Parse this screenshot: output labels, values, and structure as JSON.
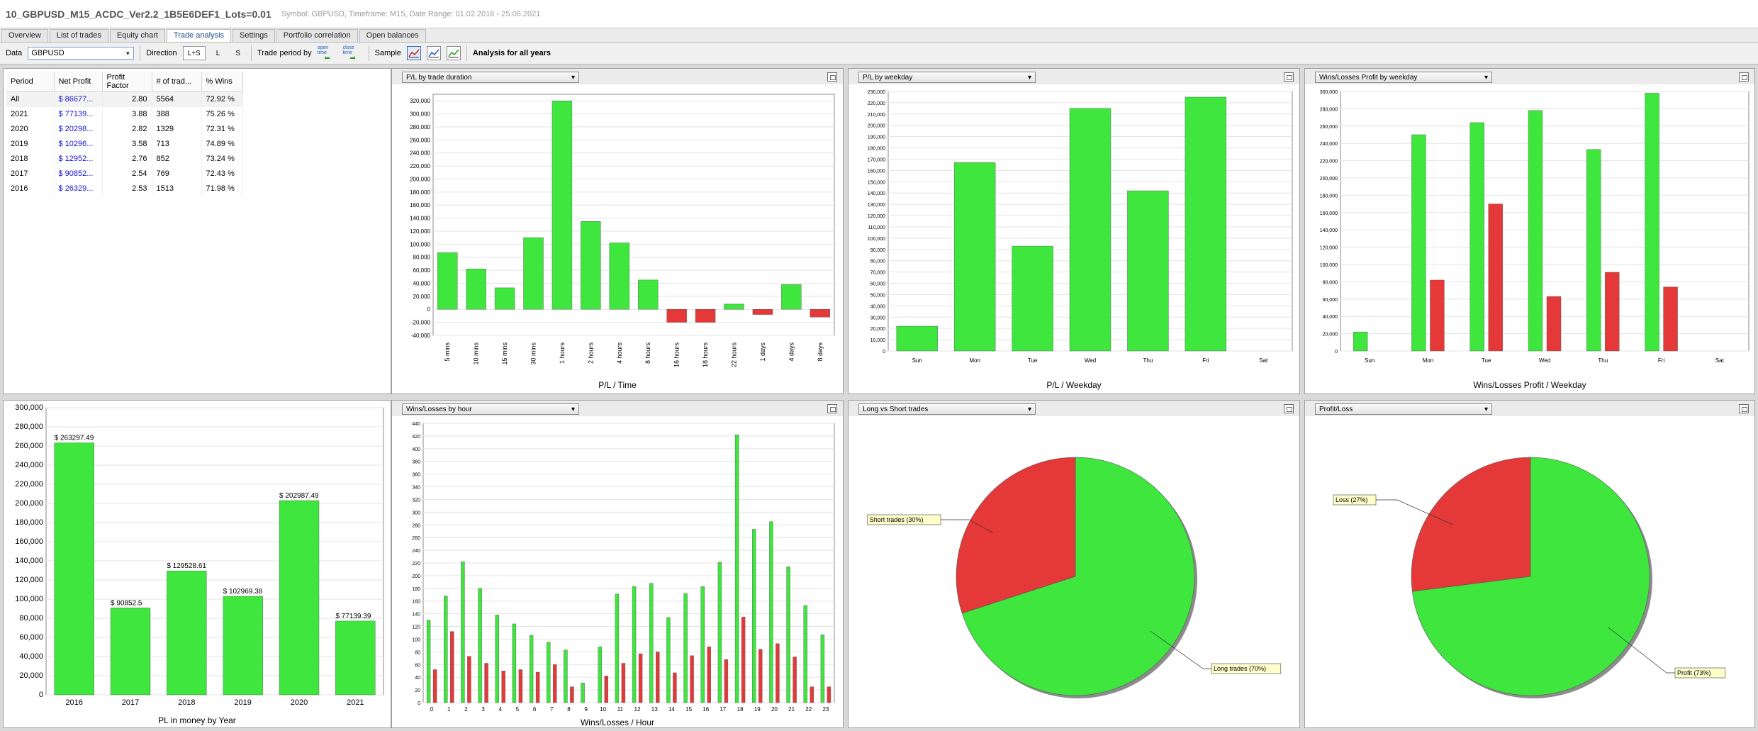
{
  "window": {
    "title": "10_GBPUSD_M15_ACDC_Ver2.2_1B5E6DEF1_Lots=0.01",
    "subtitle": "Symbol: GBPUSD, Timeframe: M15, Date Range: 01.02.2016 - 25.06.2021"
  },
  "tabs": [
    {
      "label": "Overview"
    },
    {
      "label": "List of trades"
    },
    {
      "label": "Equity chart"
    },
    {
      "label": "Trade analysis",
      "active": true
    },
    {
      "label": "Settings"
    },
    {
      "label": "Portfolio correlation"
    },
    {
      "label": "Open balances"
    }
  ],
  "toolbar": {
    "data_label": "Data",
    "data_value": "GBPUSD",
    "direction_label": "Direction",
    "dir_both": "L+S",
    "dir_long": "L",
    "dir_short": "S",
    "trade_period_label": "Trade period by",
    "open_time": "open time",
    "close_time": "close time",
    "sample_label": "Sample",
    "analysis_label": "Analysis for all years"
  },
  "table": {
    "headers": [
      "Period",
      "Net Profit",
      "Profit Factor",
      "# of trad...",
      "% Wins"
    ],
    "rows": [
      [
        "All",
        "$ 86677...",
        "2.80",
        "5564",
        "72.92 %"
      ],
      [
        "2021",
        "$ 77139...",
        "3.88",
        "388",
        "75.26 %"
      ],
      [
        "2020",
        "$ 20298...",
        "2.82",
        "1329",
        "72.31 %"
      ],
      [
        "2019",
        "$ 10296...",
        "3.58",
        "713",
        "74.89 %"
      ],
      [
        "2018",
        "$ 12952...",
        "2.76",
        "852",
        "73.24 %"
      ],
      [
        "2017",
        "$ 90852...",
        "2.54",
        "769",
        "72.43 %"
      ],
      [
        "2016",
        "$ 26329...",
        "2.53",
        "1513",
        "71.98 %"
      ]
    ]
  },
  "panels": {
    "duration_select": "P/L by trade duration",
    "weekday_select": "P/L by weekday",
    "wl_weekday_select": "Wins/Losses Profit by weekday",
    "hour_select": "Wins/Losses by hour",
    "longshort_select": "Long vs Short trades",
    "profitloss_select": "Profit/Loss"
  },
  "colors": {
    "green": "#3ee63e",
    "red": "#e53939",
    "grid": "#e3e3e3"
  },
  "chart_data": [
    {
      "id": "duration",
      "type": "bar",
      "xlabel": "P/L / Time",
      "categories": [
        "5 mins",
        "10 mins",
        "15 mins",
        "30 mins",
        "1 hours",
        "2 hours",
        "4 hours",
        "8 hours",
        "16 hours",
        "18 hours",
        "22 hours",
        "1 days",
        "4 days",
        "8 days"
      ],
      "values": [
        87000,
        62000,
        33000,
        110000,
        320000,
        135000,
        102000,
        45000,
        -20000,
        -20000,
        8000,
        -8000,
        38000,
        -12000
      ],
      "ylim": [
        -40000,
        330000
      ],
      "yticks": [
        "320,000",
        "300,000",
        "280,000",
        "260,000",
        "240,000",
        "220,000",
        "200,000",
        "180,000",
        "160,000",
        "140,000",
        "120,000",
        "100,000",
        "80,000",
        "60,000",
        "40,000",
        "20,000",
        "0",
        "-20,000",
        "-40,000"
      ]
    },
    {
      "id": "weekday",
      "type": "bar",
      "xlabel": "P/L / Weekday",
      "categories": [
        "Sun",
        "Mon",
        "Tue",
        "Wed",
        "Thu",
        "Fri",
        "Sat"
      ],
      "values": [
        22000,
        167000,
        93000,
        215000,
        142000,
        225000,
        0
      ],
      "ylim": [
        0,
        230000
      ],
      "yticks": [
        "230,000",
        "220,000",
        "210,000",
        "200,000",
        "190,000",
        "180,000",
        "170,000",
        "160,000",
        "150,000",
        "140,000",
        "130,000",
        "120,000",
        "110,000",
        "100,000",
        "90,000",
        "80,000",
        "70,000",
        "60,000",
        "50,000",
        "40,000",
        "30,000",
        "20,000",
        "10,000",
        "0"
      ]
    },
    {
      "id": "wl_weekday",
      "type": "bar",
      "xlabel": "Wins/Losses Profit / Weekday",
      "categories": [
        "Sun",
        "Mon",
        "Tue",
        "Wed",
        "Thu",
        "Fri",
        "Sat"
      ],
      "series": [
        {
          "values": [
            22000,
            250000,
            264000,
            278000,
            233000,
            298000,
            0
          ]
        },
        {
          "values": [
            0,
            82000,
            170000,
            63000,
            91000,
            74000,
            0
          ]
        }
      ],
      "ylim": [
        0,
        300000
      ],
      "yticks": [
        "300,000",
        "280,000",
        "260,000",
        "240,000",
        "220,000",
        "200,000",
        "180,000",
        "160,000",
        "140,000",
        "120,000",
        "100,000",
        "80,000",
        "60,000",
        "40,000",
        "20,000",
        "0"
      ]
    },
    {
      "id": "year",
      "type": "bar",
      "xlabel": "PL in money by Year",
      "categories": [
        "2016",
        "2017",
        "2018",
        "2019",
        "2020",
        "2021"
      ],
      "values": [
        263297.49,
        90852.5,
        129528.61,
        102969.38,
        202987.49,
        77139.39
      ],
      "labels": [
        "$ 263297.49",
        "$ 90852.5",
        "$ 129528.61",
        "$ 102969.38",
        "$ 202987.49",
        "$ 77139.39"
      ],
      "ylim": [
        0,
        300000
      ],
      "yticks": [
        "300,000",
        "280,000",
        "260,000",
        "240,000",
        "220,000",
        "200,000",
        "180,000",
        "160,000",
        "140,000",
        "120,000",
        "100,000",
        "80,000",
        "60,000",
        "40,000",
        "20,000",
        "0"
      ]
    },
    {
      "id": "hour",
      "type": "bar",
      "xlabel": "Wins/Losses / Hour",
      "categories": [
        "0",
        "1",
        "2",
        "3",
        "4",
        "5",
        "6",
        "7",
        "8",
        "9",
        "10",
        "11",
        "12",
        "13",
        "14",
        "15",
        "16",
        "17",
        "18",
        "19",
        "20",
        "21",
        "22",
        "23"
      ],
      "series": [
        {
          "values": [
            130,
            168,
            222,
            180,
            138,
            124,
            106,
            95,
            83,
            31,
            88,
            171,
            183,
            188,
            134,
            172,
            183,
            221,
            422,
            273,
            285,
            214,
            153,
            107
          ]
        },
        {
          "values": [
            52,
            112,
            73,
            62,
            50,
            52,
            48,
            60,
            25,
            0,
            42,
            62,
            77,
            80,
            47,
            74,
            88,
            68,
            135,
            84,
            93,
            72,
            25,
            25
          ]
        }
      ],
      "ylim": [
        0,
        440
      ],
      "yticks": [
        "440",
        "420",
        "400",
        "380",
        "360",
        "340",
        "320",
        "300",
        "280",
        "260",
        "240",
        "220",
        "200",
        "180",
        "160",
        "140",
        "120",
        "100",
        "80",
        "60",
        "40",
        "20",
        "0"
      ]
    },
    {
      "id": "longshort",
      "type": "pie",
      "slices": [
        {
          "label": "Long trades (70%)",
          "value": 70
        },
        {
          "label": "Short trades (30%)",
          "value": 30
        }
      ]
    },
    {
      "id": "profitloss",
      "type": "pie",
      "slices": [
        {
          "label": "Profit (73%)",
          "value": 73
        },
        {
          "label": "Loss (27%)",
          "value": 27
        }
      ]
    }
  ]
}
